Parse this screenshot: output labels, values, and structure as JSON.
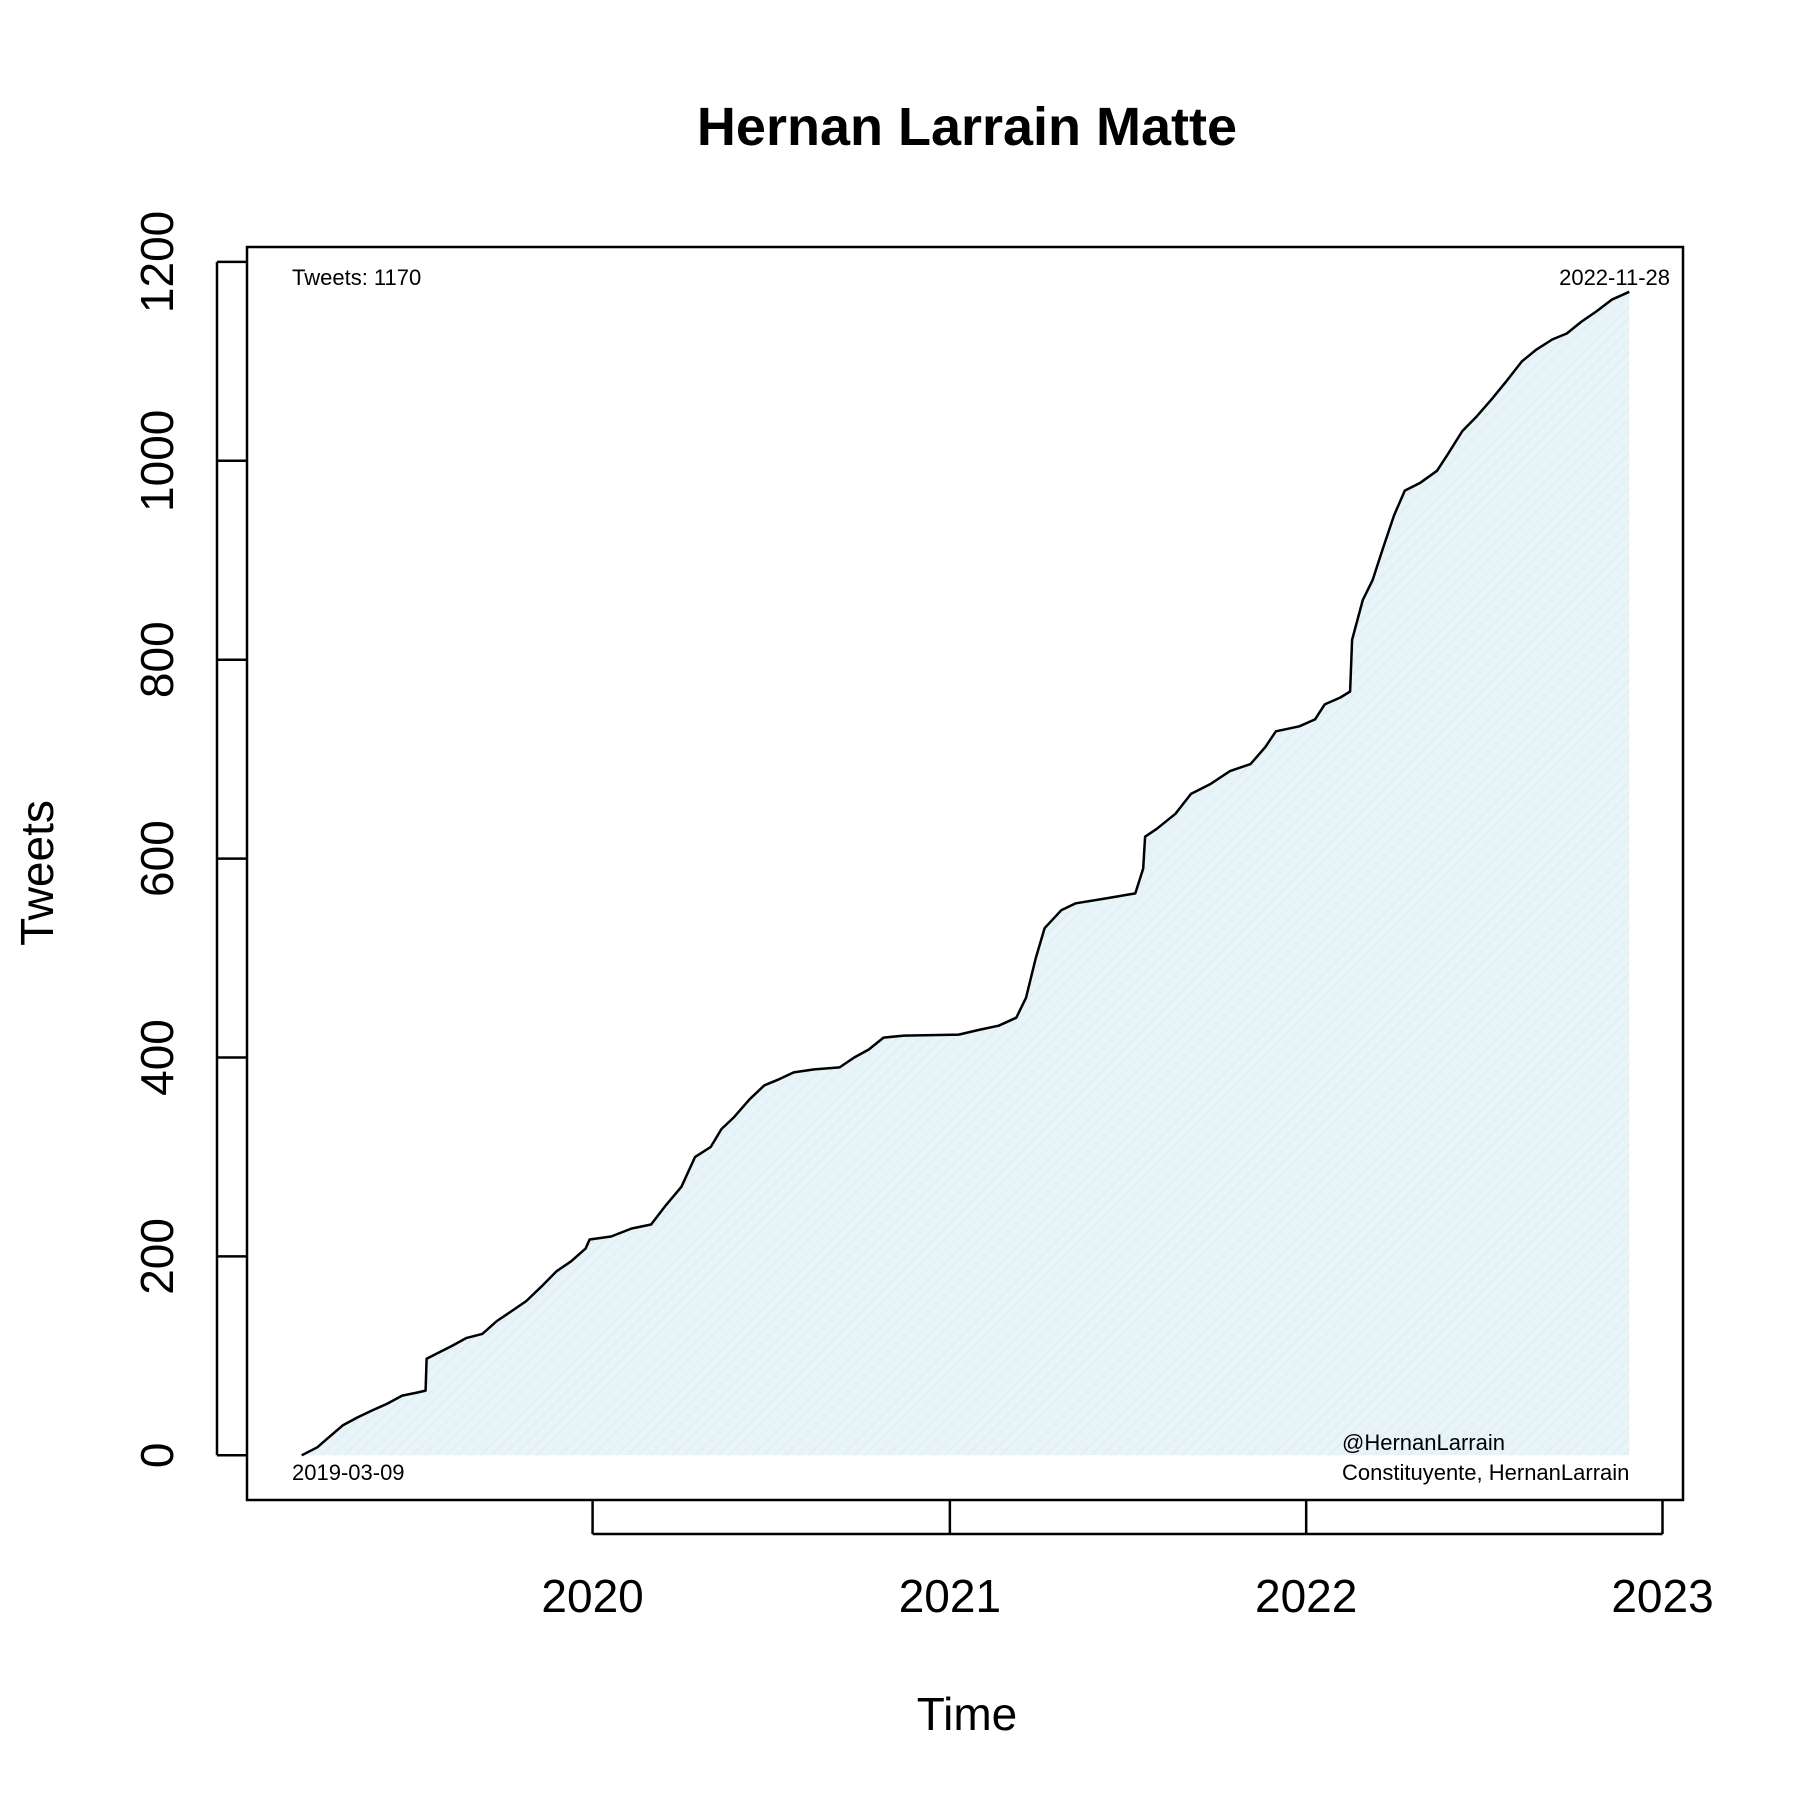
{
  "chart_data": {
    "type": "area",
    "title": "Hernan Larrain Matte",
    "xlabel": "Time",
    "ylabel": "Tweets",
    "xlim": [
      "2019-01-12",
      "2023-01-22"
    ],
    "ylim": [
      -45,
      1215
    ],
    "x_ticks": [
      {
        "date": "2020-01-01",
        "label": "2020"
      },
      {
        "date": "2021-01-01",
        "label": "2021"
      },
      {
        "date": "2022-01-01",
        "label": "2022"
      },
      {
        "date": "2023-01-01",
        "label": "2023"
      }
    ],
    "y_ticks": [
      0,
      200,
      400,
      600,
      800,
      1000,
      1200
    ],
    "grid": false,
    "fill_color": "#e8f4f8",
    "line_color": "#000000",
    "annotations": {
      "total": "Tweets: 1170",
      "start_date": "2019-03-09",
      "end_date": "2022-11-28",
      "handle": "@HernanLarrain",
      "tags": "Constituyente, HernanLarrain"
    },
    "series": [
      {
        "points": [
          [
            "2019-03-09",
            0
          ],
          [
            "2019-03-25",
            8
          ],
          [
            "2019-04-08",
            20
          ],
          [
            "2019-04-20",
            30
          ],
          [
            "2019-05-05",
            38
          ],
          [
            "2019-05-20",
            45
          ],
          [
            "2019-06-05",
            52
          ],
          [
            "2019-06-20",
            60
          ],
          [
            "2019-07-05",
            63
          ],
          [
            "2019-07-14",
            65
          ],
          [
            "2019-07-15",
            97
          ],
          [
            "2019-07-25",
            102
          ],
          [
            "2019-08-10",
            110
          ],
          [
            "2019-08-25",
            118
          ],
          [
            "2019-09-10",
            122
          ],
          [
            "2019-09-25",
            135
          ],
          [
            "2019-10-10",
            145
          ],
          [
            "2019-10-25",
            155
          ],
          [
            "2019-11-10",
            170
          ],
          [
            "2019-11-25",
            185
          ],
          [
            "2019-12-10",
            195
          ],
          [
            "2019-12-25",
            208
          ],
          [
            "2019-12-29",
            217
          ],
          [
            "2020-01-20",
            220
          ],
          [
            "2020-02-10",
            228
          ],
          [
            "2020-03-01",
            232
          ],
          [
            "2020-03-15",
            250
          ],
          [
            "2020-04-01",
            270
          ],
          [
            "2020-04-15",
            300
          ],
          [
            "2020-05-01",
            310
          ],
          [
            "2020-05-12",
            328
          ],
          [
            "2020-05-25",
            340
          ],
          [
            "2020-06-10",
            358
          ],
          [
            "2020-06-25",
            372
          ],
          [
            "2020-07-10",
            378
          ],
          [
            "2020-07-25",
            385
          ],
          [
            "2020-08-15",
            388
          ],
          [
            "2020-09-10",
            390
          ],
          [
            "2020-09-25",
            400
          ],
          [
            "2020-10-10",
            408
          ],
          [
            "2020-10-25",
            420
          ],
          [
            "2020-11-15",
            422
          ],
          [
            "2021-01-10",
            423
          ],
          [
            "2021-02-01",
            428
          ],
          [
            "2021-02-20",
            432
          ],
          [
            "2021-03-10",
            440
          ],
          [
            "2021-03-20",
            460
          ],
          [
            "2021-03-30",
            500
          ],
          [
            "2021-04-08",
            530
          ],
          [
            "2021-04-25",
            548
          ],
          [
            "2021-05-10",
            555
          ],
          [
            "2021-06-10",
            560
          ],
          [
            "2021-07-10",
            565
          ],
          [
            "2021-07-18",
            590
          ],
          [
            "2021-07-20",
            622
          ],
          [
            "2021-08-01",
            630
          ],
          [
            "2021-08-20",
            645
          ],
          [
            "2021-09-05",
            665
          ],
          [
            "2021-09-25",
            675
          ],
          [
            "2021-10-15",
            688
          ],
          [
            "2021-11-05",
            695
          ],
          [
            "2021-11-20",
            712
          ],
          [
            "2021-12-01",
            728
          ],
          [
            "2021-12-25",
            733
          ],
          [
            "2022-01-10",
            740
          ],
          [
            "2022-01-20",
            755
          ],
          [
            "2022-02-05",
            762
          ],
          [
            "2022-02-15",
            768
          ],
          [
            "2022-02-17",
            820
          ],
          [
            "2022-02-28",
            860
          ],
          [
            "2022-03-10",
            880
          ],
          [
            "2022-03-20",
            910
          ],
          [
            "2022-04-01",
            945
          ],
          [
            "2022-04-12",
            970
          ],
          [
            "2022-04-28",
            978
          ],
          [
            "2022-05-15",
            990
          ],
          [
            "2022-05-25",
            1005
          ],
          [
            "2022-06-10",
            1030
          ],
          [
            "2022-06-25",
            1045
          ],
          [
            "2022-07-10",
            1062
          ],
          [
            "2022-07-25",
            1080
          ],
          [
            "2022-08-10",
            1100
          ],
          [
            "2022-08-25",
            1112
          ],
          [
            "2022-09-10",
            1122
          ],
          [
            "2022-09-25",
            1128
          ],
          [
            "2022-10-10",
            1140
          ],
          [
            "2022-10-25",
            1150
          ],
          [
            "2022-11-10",
            1162
          ],
          [
            "2022-11-28",
            1170
          ]
        ]
      }
    ]
  }
}
